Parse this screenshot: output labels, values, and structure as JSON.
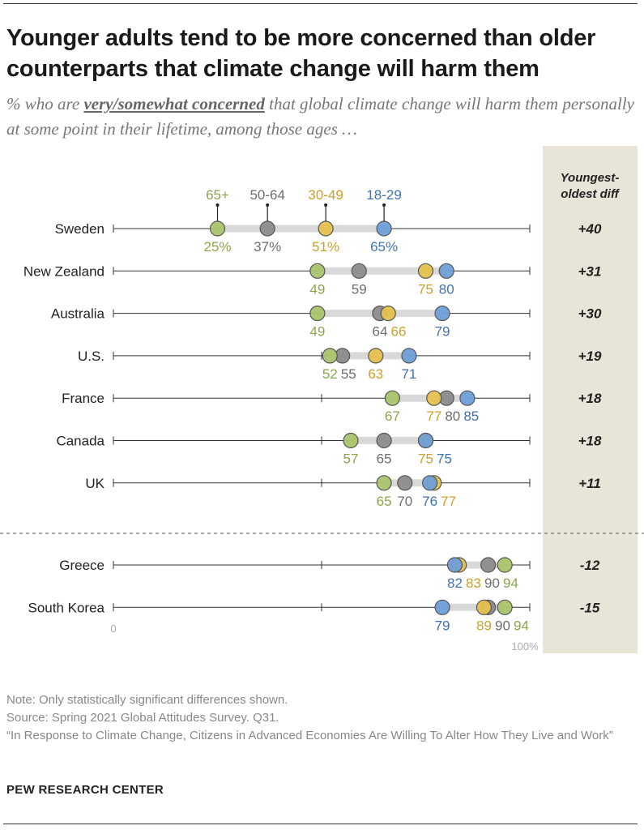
{
  "title": "Younger adults tend to be more concerned than older counterparts that climate change will harm them",
  "subtitle_pre": "% who are ",
  "subtitle_em": "very/somewhat concerned",
  "subtitle_post": " that global climate change will harm them personally at some point in their lifetime, among those ages …",
  "notes": {
    "note": "Note: Only statistically significant differences shown.",
    "source": "Source: Spring 2021 Global Attitudes Survey. Q31.",
    "report": "“In Response to Climate Change, Citizens in Advanced Economies Are Willing To Alter How They Live and Work”"
  },
  "brand": "PEW RESEARCH CENTER",
  "colors": {
    "65+": "#a9c46c",
    "50-64": "#8c8c8c",
    "30-49": "#e6c14f",
    "18-29": "#6f9fd8",
    "diff_column_bg": "#e8e4d7",
    "range_bar": "#d9d9d9"
  },
  "chart_data": {
    "type": "dot-plot",
    "series": [
      {
        "name": "65+",
        "label_color": "#8aa64a"
      },
      {
        "name": "50-64",
        "label_color": "#6e6e6e"
      },
      {
        "name": "30-49",
        "label_color": "#c9a22a"
      },
      {
        "name": "18-29",
        "label_color": "#3f72b5"
      }
    ],
    "x_axis": {
      "min": 0,
      "max": 100,
      "min_label": "0",
      "max_label": "100%"
    },
    "diff_header": "Youngest-oldest diff",
    "groups": [
      {
        "rows": [
          {
            "country": "Sweden",
            "values": {
              "65+": 25,
              "50-64": 37,
              "30-49": 51,
              "18-29": 65
            },
            "labels": {
              "65+": "25%",
              "50-64": "37%",
              "30-49": "51%",
              "18-29": "65%"
            },
            "diff": "+40"
          },
          {
            "country": "New Zealand",
            "values": {
              "65+": 49,
              "50-64": 59,
              "30-49": 75,
              "18-29": 80
            },
            "labels": {
              "65+": "49",
              "50-64": "59",
              "30-49": "75",
              "18-29": "80"
            },
            "diff": "+31"
          },
          {
            "country": "Australia",
            "values": {
              "65+": 49,
              "50-64": 64,
              "30-49": 66,
              "18-29": 79
            },
            "labels": {
              "65+": "49",
              "50-64": "64",
              "30-49": "66",
              "18-29": "79"
            },
            "diff": "+30"
          },
          {
            "country": "U.S.",
            "values": {
              "65+": 52,
              "50-64": 55,
              "30-49": 63,
              "18-29": 71
            },
            "labels": {
              "65+": "52",
              "50-64": "55",
              "30-49": "63",
              "18-29": "71"
            },
            "diff": "+19"
          },
          {
            "country": "France",
            "values": {
              "65+": 67,
              "50-64": 80,
              "30-49": 77,
              "18-29": 85
            },
            "labels": {
              "65+": "67",
              "50-64": "80",
              "30-49": "77",
              "18-29": "85"
            },
            "diff": "+18"
          },
          {
            "country": "Canada",
            "values": {
              "65+": 57,
              "50-64": 65,
              "30-49": 75,
              "18-29": 75
            },
            "labels": {
              "65+": "57",
              "50-64": "65",
              "30-49": "75",
              "18-29": "75"
            },
            "diff": "+18"
          },
          {
            "country": "UK",
            "values": {
              "65+": 65,
              "50-64": 70,
              "30-49": 77,
              "18-29": 76
            },
            "labels": {
              "65+": "65",
              "50-64": "70",
              "30-49": "77",
              "18-29": "76"
            },
            "diff": "+11"
          }
        ]
      },
      {
        "rows": [
          {
            "country": "Greece",
            "values": {
              "65+": 94,
              "50-64": 90,
              "30-49": 83,
              "18-29": 82
            },
            "labels": {
              "65+": "94",
              "50-64": "90",
              "30-49": "83",
              "18-29": "82"
            },
            "diff": "-12"
          },
          {
            "country": "South Korea",
            "values": {
              "65+": 94,
              "50-64": 90,
              "30-49": 89,
              "18-29": 79
            },
            "labels": {
              "65+": "94",
              "50-64": "90",
              "30-49": "89",
              "18-29": "79"
            },
            "diff": "-15"
          }
        ]
      }
    ]
  }
}
